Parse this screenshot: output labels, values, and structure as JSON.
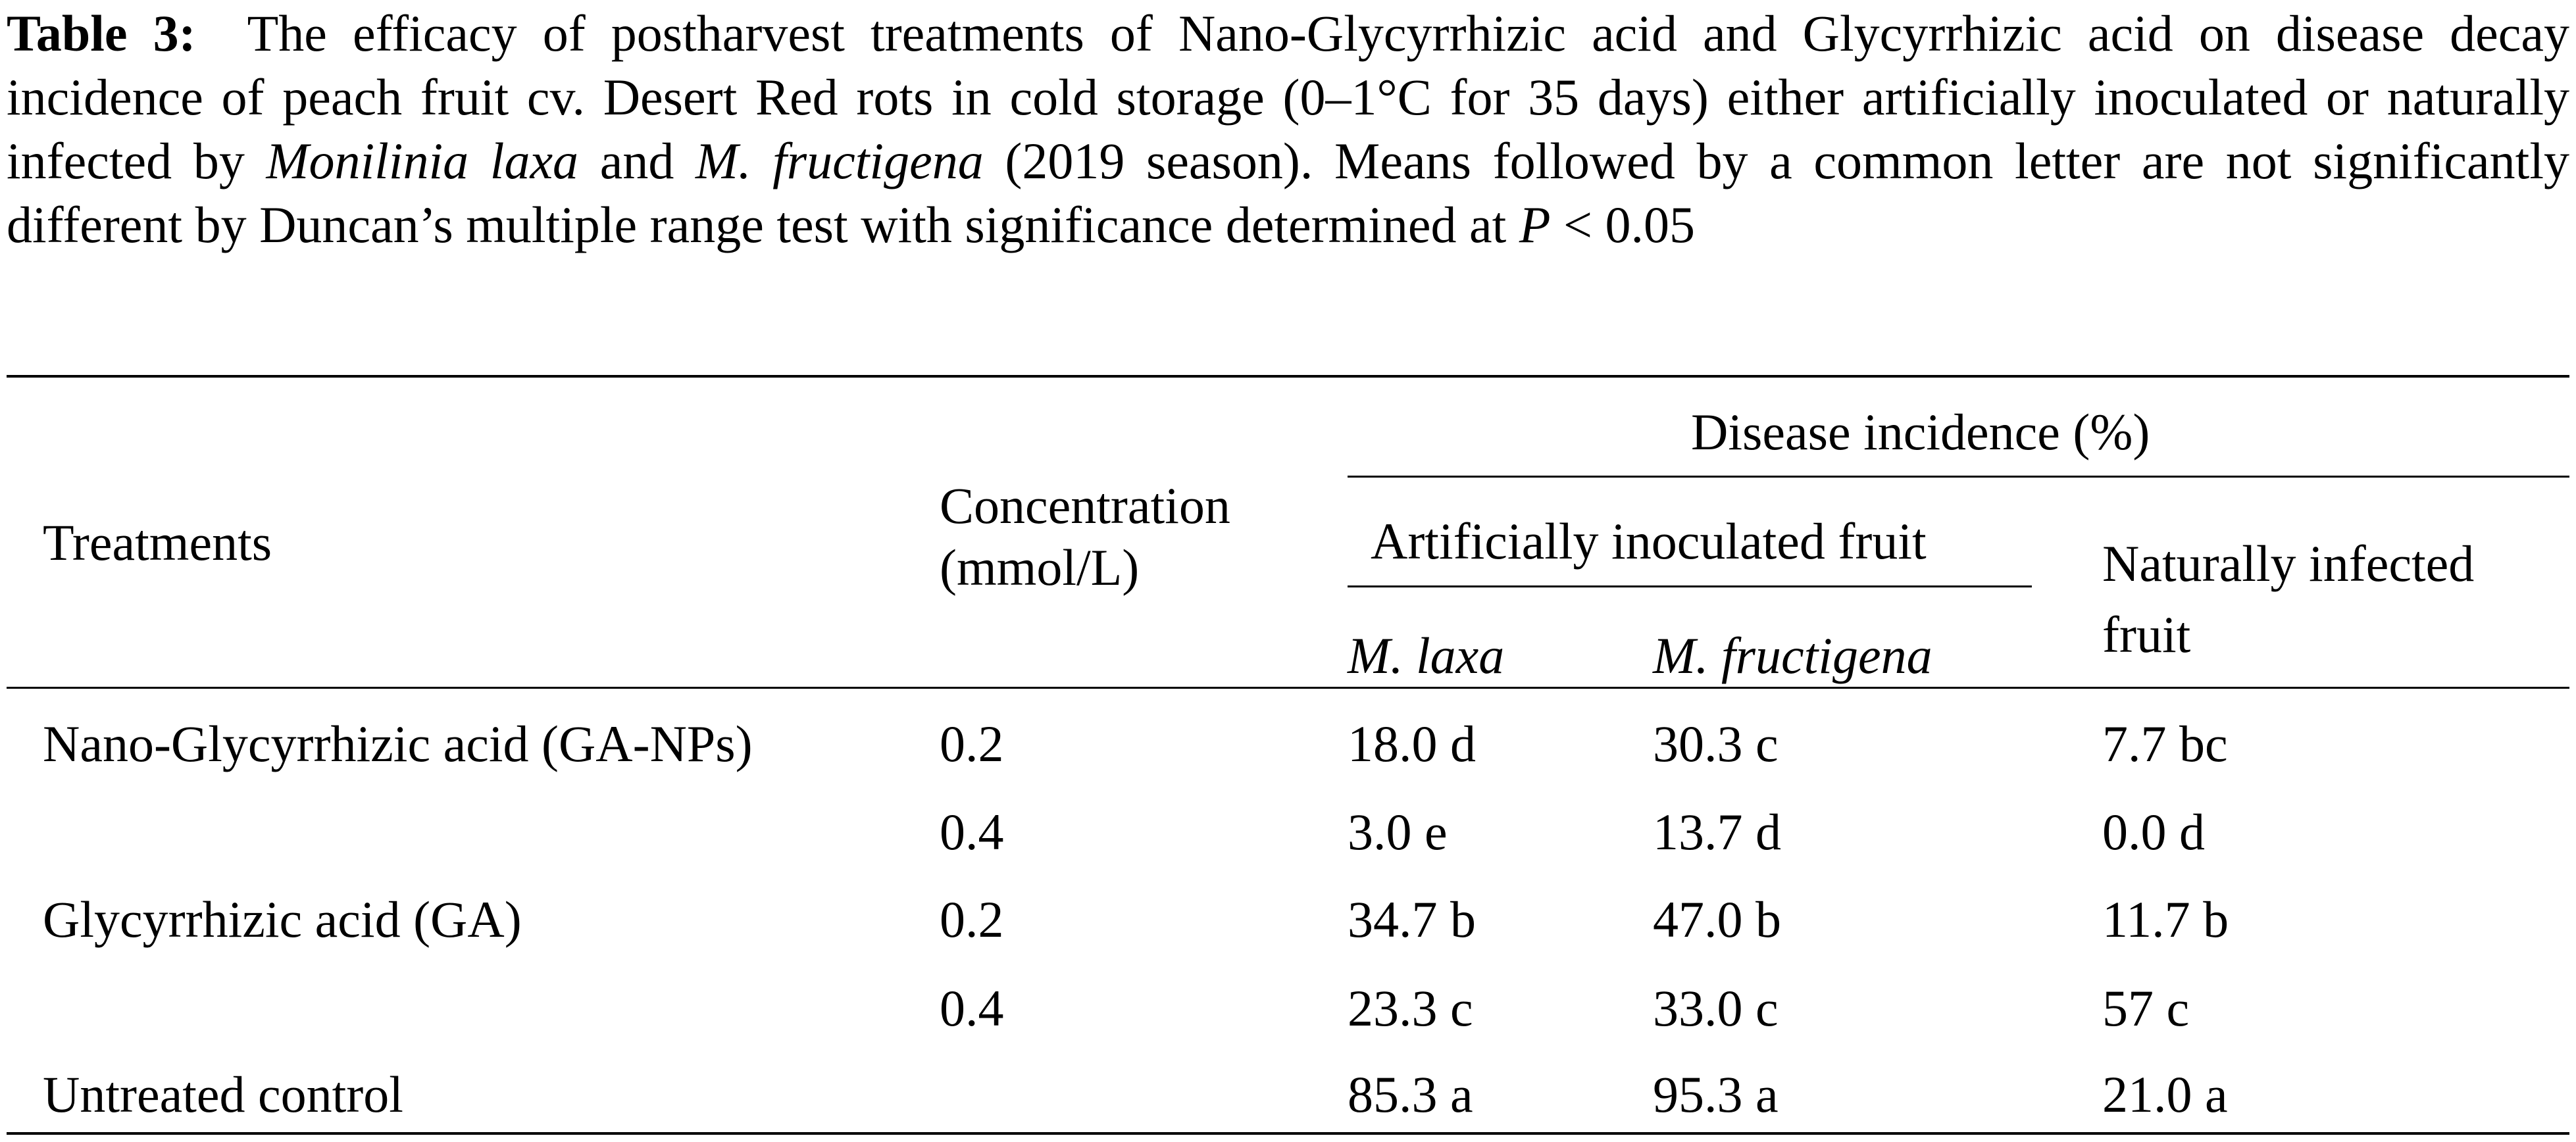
{
  "caption": {
    "label": "Table 3:",
    "text_1": "The efficacy of postharvest treatments of Nano-Glycyrrhizic acid and Glycyrrhizic acid on disease decay incidence of peach fruit cv. Desert Red rots in cold storage (0–1°C for 35 days) either artificially inoculated or naturally infected by ",
    "species_1": "Monilinia laxa",
    "text_2": " and ",
    "species_2": "M. fructigena",
    "text_3": " (2019 season). Means followed by a common letter are not significantly different by Duncan’s multiple range test with significance determined at ",
    "p_symbol": "P",
    "text_4": " < 0.05"
  },
  "table": {
    "header": {
      "treatments": "Treatments",
      "concentration_line1": "Concentration",
      "concentration_line2": "(mmol/L)",
      "disease_incidence": "Disease incidence (%)",
      "artificially_inoculated": "Artificially inoculated fruit",
      "m_laxa": "M. laxa",
      "m_fructigena": "M. fructigena",
      "naturally_line1": "Naturally infected",
      "naturally_line2": "fruit"
    },
    "rows": [
      {
        "treatment": "Nano-Glycyrrhizic acid (GA-NPs)",
        "concentration": "0.2",
        "m_laxa": "18.0 d",
        "m_fructigena": "30.3 c",
        "natural": "7.7 bc"
      },
      {
        "treatment": "",
        "concentration": "0.4",
        "m_laxa": "3.0 e",
        "m_fructigena": "13.7 d",
        "natural": "0.0 d"
      },
      {
        "treatment": "Glycyrrhizic acid (GA)",
        "concentration": "0.2",
        "m_laxa": "34.7 b",
        "m_fructigena": "47.0 b",
        "natural": "11.7 b"
      },
      {
        "treatment": "",
        "concentration": "0.4",
        "m_laxa": "23.3 c",
        "m_fructigena": "33.0 c",
        "natural": "57 c"
      },
      {
        "treatment": "Untreated control",
        "concentration": "",
        "m_laxa": "85.3 a",
        "m_fructigena": "95.3 a",
        "natural": "21.0 a"
      }
    ]
  }
}
